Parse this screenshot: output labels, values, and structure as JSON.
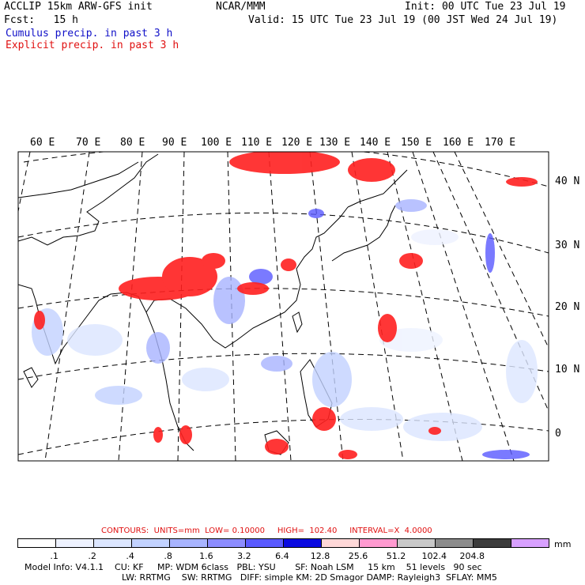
{
  "header": {
    "model_title": "ACCLIP 15km ARW-GFS init",
    "org": "NCAR/MMM",
    "init": "Init: 00 UTC Tue 23 Jul 19",
    "fcst": "Fcst:   15 h",
    "valid": "Valid: 15 UTC Tue 23 Jul 19 (00 JST Wed 24 Jul 19)",
    "legend_cumulus": "Cumulus precip. in past 3 h",
    "legend_explicit": "Explicit precip. in past 3 h"
  },
  "map": {
    "lon_labels": [
      "60 E",
      "70 E",
      "80 E",
      "90 E",
      "100 E",
      "110 E",
      "120 E",
      "130 E",
      "140 E",
      "150 E",
      "160 E",
      "170 E"
    ],
    "lat_labels": [
      "40 N",
      "30 N",
      "20 N",
      "10 N",
      "0"
    ]
  },
  "contours": {
    "label": "CONTOURS:  UNITS=mm  LOW= 0.10000     HIGH=  102.40     INTERVAL=X  4.0000"
  },
  "colorbar": {
    "unit": "mm",
    "labels": [
      ".1",
      ".2",
      ".4",
      ".8",
      "1.6",
      "3.2",
      "6.4",
      "12.8",
      "25.6",
      "51.2",
      "102.4",
      "204.8"
    ],
    "colors": [
      "#ffffff",
      "#eef2ff",
      "#dce6ff",
      "#c2d2ff",
      "#a8b4ff",
      "#8c8cff",
      "#5a5aff",
      "#0a0ae0",
      "#ffd8d8",
      "#ff9ad0",
      "#c8c8c8",
      "#8c8c8c",
      "#3c3c3c",
      "#d8a0ff"
    ]
  },
  "footer": {
    "line1": "Model Info: V4.1.1    CU: KF     MP: WDM 6class   PBL: YSU       SF: Noah LSM     15 km    51 levels   90 sec",
    "line2": "LW: RRTMG    SW: RRTMG   DIFF: simple KM: 2D Smagor DAMP: Rayleigh3  SFLAY: MM5"
  }
}
